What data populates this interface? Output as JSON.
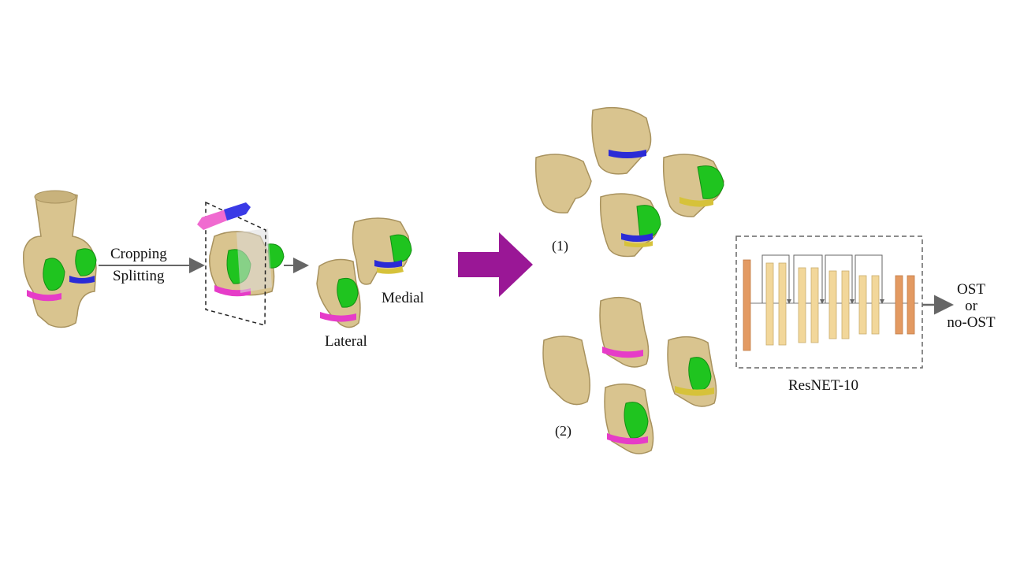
{
  "labels": {
    "cropping": "Cropping",
    "splitting": "Splitting",
    "medial": "Medial",
    "lateral": "Lateral",
    "group1": "(1)",
    "group2": "(2)",
    "network": "ResNET-10",
    "output_line1": "OST",
    "output_line2": "or",
    "output_line3": "no-OST"
  },
  "colors": {
    "bone": "#d9c48f",
    "bone_shade": "#a8925e",
    "cartilage_green": "#1fc41f",
    "meniscus_magenta": "#e63cc8",
    "meniscus_blue": "#2b2bd6",
    "meniscus_yellow": "#d6c23a",
    "big_arrow": "#9a1796",
    "conv_block": "#f2d79a",
    "io_layer": "#e39a62",
    "gray_arrow": "#666666"
  }
}
